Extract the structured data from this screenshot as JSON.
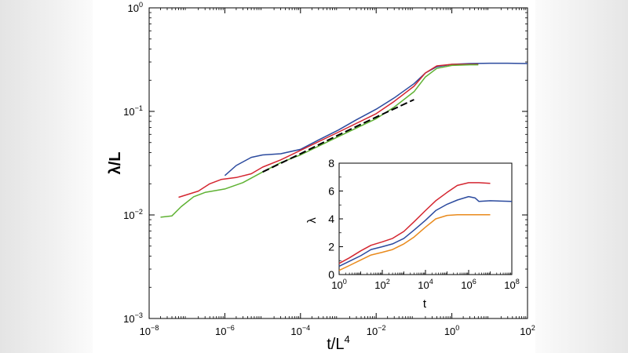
{
  "chart_data": [
    {
      "type": "line",
      "scale": "log-log",
      "xlabel": "t/L",
      "xlabel_sup": "4",
      "ylabel": "λ/L",
      "xlim": [
        1e-08,
        100
      ],
      "ylim": [
        0.001,
        1
      ],
      "x_ticks": [
        {
          "value": 1e-08,
          "base": "10",
          "exp": "−8"
        },
        {
          "value": 1e-06,
          "base": "10",
          "exp": "−6"
        },
        {
          "value": 0.0001,
          "base": "10",
          "exp": "−4"
        },
        {
          "value": 0.01,
          "base": "10",
          "exp": "−2"
        },
        {
          "value": 1,
          "base": "10",
          "exp": "0"
        },
        {
          "value": 100,
          "base": "10",
          "exp": "2"
        }
      ],
      "y_ticks": [
        {
          "value": 0.001,
          "base": "10",
          "exp": "−3"
        },
        {
          "value": 0.01,
          "base": "10",
          "exp": "−2"
        },
        {
          "value": 0.1,
          "base": "10",
          "exp": "−1"
        },
        {
          "value": 1,
          "base": "10",
          "exp": "0"
        }
      ],
      "grid": false,
      "series": [
        {
          "color": "#2b4a9e",
          "dash": false,
          "points": [
            [
              1e-06,
              0.024
            ],
            [
              2e-06,
              0.03
            ],
            [
              5e-06,
              0.036
            ],
            [
              1e-05,
              0.038
            ],
            [
              3e-05,
              0.039
            ],
            [
              0.0001,
              0.043
            ],
            [
              0.0003,
              0.053
            ],
            [
              0.001,
              0.066
            ],
            [
              0.003,
              0.083
            ],
            [
              0.01,
              0.105
            ],
            [
              0.03,
              0.135
            ],
            [
              0.1,
              0.185
            ],
            [
              0.2,
              0.235
            ],
            [
              0.4,
              0.27
            ],
            [
              1,
              0.285
            ],
            [
              3,
              0.29
            ],
            [
              10,
              0.292
            ],
            [
              30,
              0.292
            ],
            [
              100,
              0.29
            ]
          ]
        },
        {
          "color": "#d42630",
          "dash": false,
          "points": [
            [
              6e-08,
              0.0148
            ],
            [
              2e-07,
              0.017
            ],
            [
              4e-07,
              0.02
            ],
            [
              8e-07,
              0.022
            ],
            [
              2e-06,
              0.023
            ],
            [
              5e-06,
              0.025
            ],
            [
              1e-05,
              0.029
            ],
            [
              3e-05,
              0.034
            ],
            [
              0.0001,
              0.042
            ],
            [
              0.001,
              0.063
            ],
            [
              0.01,
              0.095
            ],
            [
              0.03,
              0.125
            ],
            [
              0.1,
              0.175
            ],
            [
              0.2,
              0.235
            ],
            [
              0.4,
              0.275
            ],
            [
              1,
              0.285
            ],
            [
              3,
              0.285
            ],
            [
              5,
              0.285
            ]
          ]
        },
        {
          "color": "#5fb233",
          "dash": false,
          "points": [
            [
              2e-08,
              0.0095
            ],
            [
              4e-08,
              0.0098
            ],
            [
              7e-08,
              0.012
            ],
            [
              1.5e-07,
              0.015
            ],
            [
              3e-07,
              0.0165
            ],
            [
              1e-06,
              0.0178
            ],
            [
              3e-06,
              0.0205
            ],
            [
              1e-05,
              0.026
            ],
            [
              3e-05,
              0.032
            ],
            [
              0.0001,
              0.038
            ],
            [
              0.001,
              0.057
            ],
            [
              0.01,
              0.085
            ],
            [
              0.03,
              0.11
            ],
            [
              0.1,
              0.155
            ],
            [
              0.2,
              0.215
            ],
            [
              0.4,
              0.26
            ],
            [
              1,
              0.278
            ],
            [
              3,
              0.282
            ],
            [
              5,
              0.282
            ]
          ]
        },
        {
          "color": "#000000",
          "dash": true,
          "points": [
            [
              1e-05,
              0.026
            ],
            [
              0.0001,
              0.039
            ],
            [
              0.001,
              0.059
            ],
            [
              0.01,
              0.088
            ],
            [
              0.1,
              0.13
            ]
          ]
        }
      ]
    },
    {
      "type": "line",
      "scale": "semilog-x",
      "xlabel": "t",
      "ylabel": "λ",
      "xlim": [
        1,
        100000000
      ],
      "ylim": [
        0,
        8
      ],
      "x_ticks": [
        {
          "value": 1,
          "base": "10",
          "exp": "0"
        },
        {
          "value": 100,
          "base": "10",
          "exp": "2"
        },
        {
          "value": 10000,
          "base": "10",
          "exp": "4"
        },
        {
          "value": 1000000,
          "base": "10",
          "exp": "6"
        },
        {
          "value": 100000000,
          "base": "10",
          "exp": "8"
        }
      ],
      "y_ticks": [
        "0",
        "2",
        "4",
        "6",
        "8"
      ],
      "series": [
        {
          "color": "#d42630",
          "points": [
            [
              1,
              0.8
            ],
            [
              3,
              1.2
            ],
            [
              10,
              1.7
            ],
            [
              30,
              2.1
            ],
            [
              100,
              2.35
            ],
            [
              300,
              2.6
            ],
            [
              1000,
              3.1
            ],
            [
              3000,
              3.8
            ],
            [
              10000,
              4.6
            ],
            [
              30000,
              5.3
            ],
            [
              100000,
              5.9
            ],
            [
              300000,
              6.4
            ],
            [
              1000000,
              6.6
            ],
            [
              3000000,
              6.6
            ],
            [
              10000000,
              6.55
            ]
          ]
        },
        {
          "color": "#2b4a9e",
          "points": [
            [
              1,
              0.6
            ],
            [
              3,
              0.95
            ],
            [
              10,
              1.35
            ],
            [
              30,
              1.8
            ],
            [
              100,
              2.0
            ],
            [
              300,
              2.2
            ],
            [
              1000,
              2.6
            ],
            [
              3000,
              3.2
            ],
            [
              10000,
              3.9
            ],
            [
              30000,
              4.6
            ],
            [
              100000,
              5.05
            ],
            [
              300000,
              5.35
            ],
            [
              1000000,
              5.6
            ],
            [
              2000000,
              5.5
            ],
            [
              3000000,
              5.25
            ],
            [
              10000000,
              5.3
            ],
            [
              100000000,
              5.25
            ]
          ]
        },
        {
          "color": "#e98a1c",
          "points": [
            [
              1,
              0.3
            ],
            [
              3,
              0.65
            ],
            [
              10,
              1.05
            ],
            [
              30,
              1.4
            ],
            [
              100,
              1.6
            ],
            [
              300,
              1.8
            ],
            [
              1000,
              2.2
            ],
            [
              3000,
              2.7
            ],
            [
              10000,
              3.4
            ],
            [
              30000,
              4.0
            ],
            [
              100000,
              4.25
            ],
            [
              300000,
              4.3
            ],
            [
              1000000,
              4.3
            ],
            [
              3000000,
              4.3
            ],
            [
              10000000,
              4.3
            ]
          ]
        }
      ]
    }
  ]
}
